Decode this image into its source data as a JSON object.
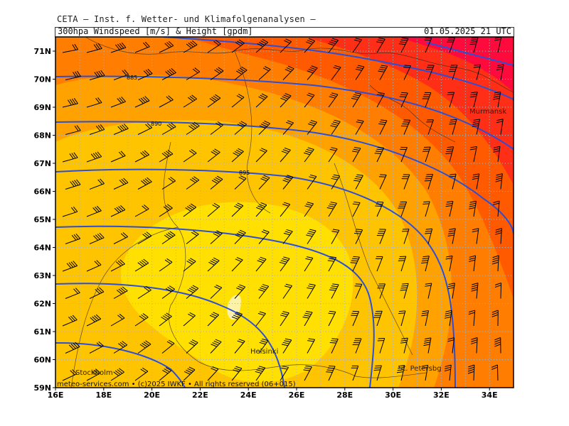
{
  "header": {
    "line1": "CETA – Inst. f. Wetter- und Klimafolgenanalysen –",
    "title": "300hpa Windspeed [m/s] & Height [gpdm]",
    "valid_time": "01.05.2025 21 UTC"
  },
  "axes": {
    "lat_labels": [
      "71N",
      "70N",
      "69N",
      "68N",
      "67N",
      "66N",
      "65N",
      "64N",
      "63N",
      "62N",
      "61N",
      "60N",
      "59N"
    ],
    "lon_labels": [
      "16E",
      "18E",
      "20E",
      "22E",
      "24E",
      "26E",
      "28E",
      "30E",
      "32E",
      "34E"
    ]
  },
  "height_contour_labels": [
    "885",
    "890",
    "895"
  ],
  "cities": [
    "Murmansk",
    "Helsinki",
    "Stockholm",
    "St. Petersbg"
  ],
  "credit": "meteo-services.com • (c)2025 IWKF • All rights reserved (06+015)",
  "colors": {
    "frame": "#000000",
    "contour": "#2d4fd6",
    "grid": "#b0b0b0",
    "speed_bands": [
      "#fdf3a8",
      "#ffe000",
      "#ffc400",
      "#ffa200",
      "#ff7d00",
      "#ff5a00",
      "#ff2e16",
      "#ff0a3c"
    ]
  }
}
